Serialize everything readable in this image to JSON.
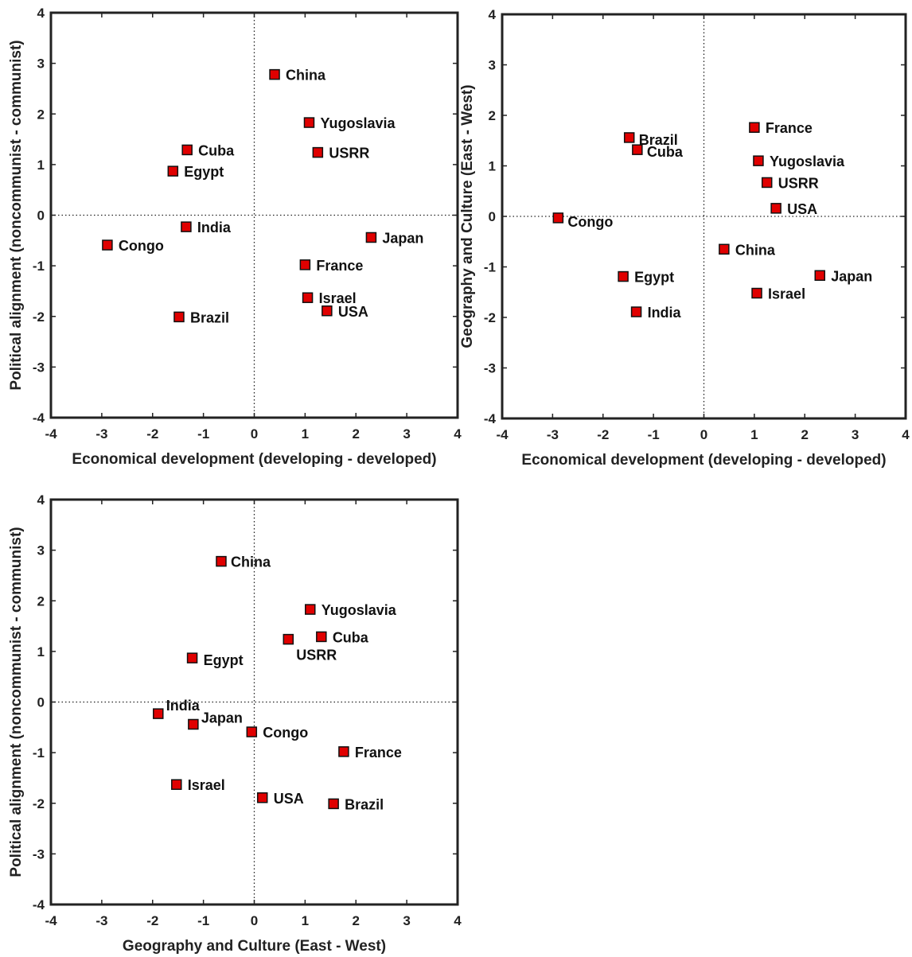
{
  "chart_data": [
    {
      "type": "scatter",
      "xlabel": "Economical development (developing - developed)",
      "ylabel": "Political alignment (noncommunist - communist)",
      "xlim": [
        -4,
        4
      ],
      "ylim": [
        -4,
        4
      ],
      "xticks": [
        -4,
        -3,
        -2,
        -1,
        0,
        1,
        2,
        3,
        4
      ],
      "yticks": [
        -4,
        -3,
        -2,
        -1,
        0,
        1,
        2,
        3,
        4
      ],
      "grid": false,
      "points": [
        {
          "label": "China",
          "x": 0.4,
          "y": 2.78
        },
        {
          "label": "Yugoslavia",
          "x": 1.08,
          "y": 1.83
        },
        {
          "label": "USRR",
          "x": 1.25,
          "y": 1.24
        },
        {
          "label": "Cuba",
          "x": -1.32,
          "y": 1.29
        },
        {
          "label": "Egypt",
          "x": -1.6,
          "y": 0.87
        },
        {
          "label": "India",
          "x": -1.34,
          "y": -0.23
        },
        {
          "label": "Congo",
          "x": -2.89,
          "y": -0.59
        },
        {
          "label": "Japan",
          "x": 2.3,
          "y": -0.44
        },
        {
          "label": "France",
          "x": 1.0,
          "y": -0.98
        },
        {
          "label": "Israel",
          "x": 1.05,
          "y": -1.63
        },
        {
          "label": "USA",
          "x": 1.43,
          "y": -1.89
        },
        {
          "label": "Brazil",
          "x": -1.48,
          "y": -2.01
        }
      ]
    },
    {
      "type": "scatter",
      "xlabel": "Economical development (developing - developed)",
      "ylabel": "Geography and Culture (East - West)",
      "xlim": [
        -4,
        4
      ],
      "ylim": [
        -4,
        4
      ],
      "xticks": [
        -4,
        -3,
        -2,
        -1,
        0,
        1,
        2,
        3,
        4
      ],
      "yticks": [
        -4,
        -3,
        -2,
        -1,
        0,
        1,
        2,
        3,
        4
      ],
      "grid": false,
      "points": [
        {
          "label": "France",
          "x": 1.0,
          "y": 1.76
        },
        {
          "label": "Brazil",
          "x": -1.48,
          "y": 1.56
        },
        {
          "label": "Cuba",
          "x": -1.32,
          "y": 1.32
        },
        {
          "label": "Yugoslavia",
          "x": 1.08,
          "y": 1.1
        },
        {
          "label": "USRR",
          "x": 1.25,
          "y": 0.67
        },
        {
          "label": "USA",
          "x": 1.43,
          "y": 0.16
        },
        {
          "label": "Congo",
          "x": -2.89,
          "y": -0.03
        },
        {
          "label": "China",
          "x": 0.4,
          "y": -0.65
        },
        {
          "label": "Egypt",
          "x": -1.6,
          "y": -1.19
        },
        {
          "label": "Japan",
          "x": 2.3,
          "y": -1.17
        },
        {
          "label": "Israel",
          "x": 1.05,
          "y": -1.52
        },
        {
          "label": "India",
          "x": -1.34,
          "y": -1.89
        }
      ]
    },
    {
      "type": "scatter",
      "xlabel": "Geography and Culture (East - West)",
      "ylabel": "Political alignment (noncommunist - communist)",
      "xlim": [
        -4,
        4
      ],
      "ylim": [
        -4,
        4
      ],
      "xticks": [
        -4,
        -3,
        -2,
        -1,
        0,
        1,
        2,
        3,
        4
      ],
      "yticks": [
        -4,
        -3,
        -2,
        -1,
        0,
        1,
        2,
        3,
        4
      ],
      "grid": false,
      "points": [
        {
          "label": "China",
          "x": -0.65,
          "y": 2.78
        },
        {
          "label": "Yugoslavia",
          "x": 1.1,
          "y": 1.83
        },
        {
          "label": "Cuba",
          "x": 1.32,
          "y": 1.29
        },
        {
          "label": "USRR",
          "x": 0.67,
          "y": 1.24
        },
        {
          "label": "Egypt",
          "x": -1.22,
          "y": 0.87
        },
        {
          "label": "India",
          "x": -1.89,
          "y": -0.23
        },
        {
          "label": "Japan",
          "x": -1.2,
          "y": -0.44
        },
        {
          "label": "Congo",
          "x": -0.05,
          "y": -0.59
        },
        {
          "label": "France",
          "x": 1.76,
          "y": -0.98
        },
        {
          "label": "Israel",
          "x": -1.53,
          "y": -1.63
        },
        {
          "label": "USA",
          "x": 0.16,
          "y": -1.89
        },
        {
          "label": "Brazil",
          "x": 1.56,
          "y": -2.01
        }
      ]
    }
  ]
}
